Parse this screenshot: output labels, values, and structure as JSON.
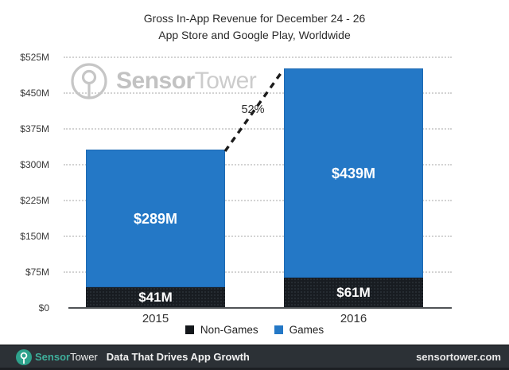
{
  "chart_data": {
    "type": "bar",
    "stacked": true,
    "title": "Gross In-App Revenue for December 24 - 26",
    "subtitle": "App Store and Google Play, Worldwide",
    "categories": [
      "2015",
      "2016"
    ],
    "series": [
      {
        "name": "Non-Games",
        "values": [
          41,
          61
        ],
        "labels": [
          "$41M",
          "$61M"
        ],
        "color": "#181c21"
      },
      {
        "name": "Games",
        "values": [
          289,
          439
        ],
        "labels": [
          "$289M",
          "$439M"
        ],
        "color": "#2478c6"
      }
    ],
    "totals": [
      330,
      500
    ],
    "growth_annotation": "52%",
    "y_axis": {
      "min": 0,
      "max": 525,
      "step": 75,
      "tick_labels": [
        "$0",
        "$75M",
        "$150M",
        "$225M",
        "$300M",
        "$375M",
        "$450M",
        "$525M"
      ]
    },
    "legend": [
      "Non-Games",
      "Games"
    ],
    "legend_position": "bottom",
    "grid": "horizontal-dotted"
  },
  "watermark": {
    "brand_bold": "Sensor",
    "brand_light": "Tower"
  },
  "footer": {
    "brand_bold": "Sensor",
    "brand_light": "Tower",
    "tagline": "Data That Drives App Growth",
    "website": "sensortower.com",
    "accent_color": "#2ea28c",
    "background_color": "#2c3136"
  },
  "colors": {
    "games_blue": "#2478c6",
    "non_games_black": "#181c21"
  }
}
